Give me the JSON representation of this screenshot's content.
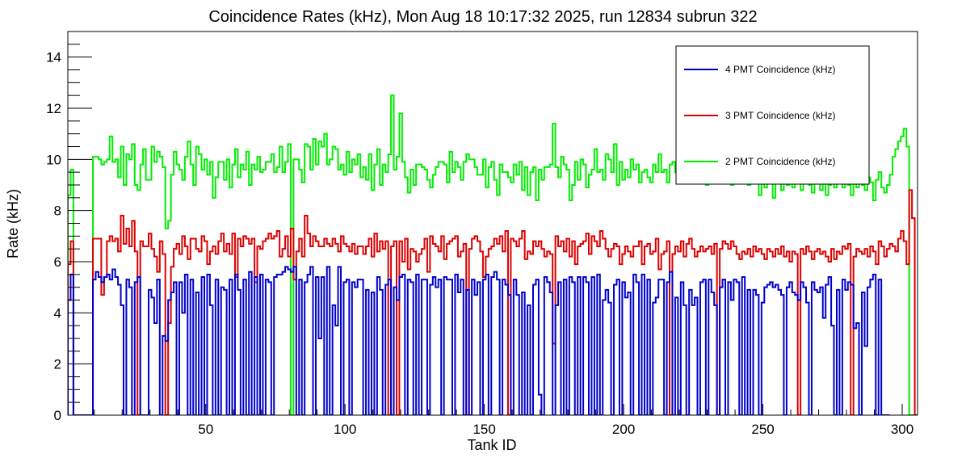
{
  "chart_data": {
    "type": "line",
    "title": "Coincidence Rates (kHz), Mon Aug 18 10:17:32 2025, run 12834 subrun 322",
    "xlabel": "Tank ID",
    "ylabel": "Rate (kHz)",
    "xlim": [
      0.5,
      305.5
    ],
    "ylim": [
      0,
      15
    ],
    "xticks": [
      50,
      100,
      150,
      200,
      250,
      300
    ],
    "yticks": [
      0,
      2,
      4,
      6,
      8,
      10,
      12,
      14
    ],
    "grid": false,
    "legend_position": "top-right",
    "x_start": 1,
    "series": [
      {
        "name": "4 PMT Coincidence (kHz)",
        "color": "#0000cc",
        "values": [
          4.5,
          5.5,
          0,
          0,
          0,
          0,
          0,
          0,
          0,
          5.3,
          5.6,
          5.4,
          5.2,
          5.4,
          5.5,
          5.3,
          5.7,
          5.4,
          5.1,
          4.3,
          0,
          5.3,
          5.0,
          0,
          5.2,
          5.4,
          0,
          0,
          0,
          4.9,
          4.6,
          3.6,
          5.3,
          0,
          3.1,
          2.9,
          4.5,
          4.8,
          5.2,
          0,
          5.2,
          4.0,
          5.5,
          0,
          5.3,
          0,
          4.8,
          0,
          5.4,
          0,
          5.5,
          4.3,
          0,
          5.3,
          0,
          5.0,
          4.9,
          0,
          5.3,
          0,
          5.5,
          4.9,
          0,
          5.3,
          0,
          5.6,
          0,
          5.4,
          0,
          5.5,
          0,
          5.3,
          5.2,
          0,
          5.4,
          5.5,
          5.5,
          5.6,
          5.8,
          5.7,
          5.6,
          5.8,
          0,
          5.3,
          0,
          5.2,
          5.5,
          5.8,
          0,
          5.4,
          3.0,
          5.4,
          0,
          5.8,
          0,
          4.3,
          3.5,
          5.8,
          0,
          5.2,
          5.3,
          0,
          5.2,
          5.0,
          5.3,
          5.3,
          0,
          4.9,
          0,
          4.8,
          0,
          5.4,
          4.9,
          0,
          5.1,
          5.3,
          0,
          5.0,
          4.5,
          5.4,
          5.5,
          0,
          5.3,
          5.2,
          0,
          5.5,
          0,
          5.3,
          5.3,
          0,
          5.1,
          5.4,
          5.0,
          5.3,
          0,
          5.4,
          5.3,
          5.3,
          0,
          5.5,
          4.8,
          5.3,
          0,
          4.9,
          0,
          5.3,
          4.7,
          5.2,
          0,
          5.3,
          5.5,
          0,
          5.4,
          5.6,
          5.3,
          0,
          5.3,
          5.1,
          4.7,
          0,
          5.3,
          4.7,
          0,
          4.8,
          0,
          4.3,
          0,
          5.1,
          5.3,
          0.8,
          0,
          5.4,
          5.2,
          4.8,
          0,
          4.3,
          5.2,
          0,
          5.3,
          0,
          5.4,
          5.2,
          0,
          5.4,
          0,
          5.4,
          5.2,
          0,
          5.4,
          0,
          5.5,
          0,
          4.5,
          4.9,
          4.4,
          0,
          5.1,
          5.3,
          0,
          5.2,
          4.6,
          4.8,
          0,
          5.5,
          5.2,
          0,
          5.5,
          0,
          5.3,
          0,
          4.4,
          4.6,
          5.3,
          5.3,
          0,
          5.2,
          5.6,
          0,
          4.6,
          0,
          5.2,
          4.3,
          0,
          4.9,
          4.3,
          4.6,
          0,
          5.2,
          5.3,
          0,
          5.3,
          4.8,
          4.3,
          0,
          5.0,
          5.3,
          0,
          5.2,
          4.5,
          5.3,
          5.2,
          0,
          5.4,
          0,
          4.9,
          0,
          4.9,
          4.7,
          0,
          4.4,
          5.0,
          5.1,
          5.2,
          5.0,
          5.1,
          4.9,
          4.7,
          0,
          5.0,
          5.2,
          4.8,
          4.7,
          4.5,
          5.2,
          5.0,
          4.4,
          0,
          5.2,
          4.9,
          4.8,
          5.0,
          3.8,
          5.1,
          5.4,
          3.5,
          0,
          4.9,
          0,
          5.3,
          4.9,
          5.2,
          5.1,
          3.4,
          3.6,
          0,
          4.8,
          2.7,
          5.0,
          5.3,
          5.5,
          0,
          5.3,
          0,
          0,
          0
        ],
        "offset_x": 0.5
      },
      {
        "name": "3 PMT Coincidence (kHz)",
        "color": "#dd0000",
        "values": [
          5.9,
          6.8,
          0,
          0,
          0,
          0,
          0,
          0,
          0,
          6.9,
          6.9,
          6.9,
          4.7,
          5.4,
          6.8,
          7.0,
          6.8,
          6.9,
          6.4,
          7.8,
          6.7,
          7.3,
          6.6,
          7.6,
          6.4,
          0,
          6.8,
          6.6,
          6.6,
          7.1,
          6.5,
          6.2,
          5.6,
          6.8,
          6.3,
          0,
          3.6,
          5.8,
          6.5,
          6.7,
          6.3,
          7.0,
          6.6,
          6.1,
          6.9,
          6.9,
          6.5,
          6.4,
          7.0,
          6.8,
          5.9,
          6.4,
          6.6,
          6.3,
          6.8,
          7.1,
          6.4,
          6.7,
          6.3,
          7.1,
          5.4,
          6.9,
          6.6,
          7.0,
          6.9,
          6.7,
          6.9,
          5.2,
          6.6,
          6.5,
          6.8,
          6.9,
          7.1,
          6.9,
          7.0,
          7.2,
          6.2,
          6.5,
          7.0,
          6.2,
          7.3,
          5.3,
          6.4,
          6.9,
          6.2,
          7.8,
          7.1,
          6.6,
          7.0,
          6.8,
          6.6,
          6.6,
          6.9,
          6.7,
          6.6,
          6.9,
          6.7,
          6.4,
          7.0,
          6.7,
          6.6,
          6.4,
          6.7,
          6.3,
          6.6,
          6.6,
          6.3,
          6.6,
          6.9,
          6.2,
          7.1,
          6.4,
          6.8,
          6.5,
          6.8,
          0,
          6.6,
          6.8,
          0,
          6.8,
          6.0,
          6.9,
          5.7,
          6.5,
          6.4,
          6.0,
          6.3,
          6.5,
          6.9,
          5.6,
          7.0,
          6.7,
          6.6,
          6.4,
          7.0,
          6.1,
          6.7,
          6.8,
          6.9,
          7.0,
          6.2,
          6.4,
          6.7,
          0,
          6.5,
          6.9,
          7.0,
          6.8,
          6.4,
          5.4,
          6.2,
          6.5,
          6.6,
          6.9,
          6.7,
          7.0,
          6.4,
          7.2,
          0,
          6.9,
          6.8,
          6.6,
          6.9,
          7.2,
          6.1,
          6.4,
          6.3,
          6.8,
          6.6,
          6.8,
          6.5,
          6.2,
          6.4,
          6.3,
          2.8,
          7.0,
          6.6,
          6.8,
          6.4,
          6.9,
          6.2,
          6.8,
          5.9,
          6.6,
          6.7,
          6.8,
          7.1,
          6.3,
          7.0,
          6.8,
          6.6,
          7.2,
          6.9,
          6.5,
          6.2,
          6.5,
          6.7,
          6.6,
          5.9,
          6.3,
          6.6,
          6.4,
          6.2,
          6.6,
          6.6,
          6.8,
          5.9,
          6.6,
          6.7,
          6.3,
          6.4,
          6.9,
          5.7,
          6.3,
          6.4,
          6.8,
          0,
          6.3,
          6.6,
          6.4,
          6.8,
          6.2,
          6.7,
          6.9,
          6.5,
          6.2,
          6.4,
          6.6,
          6.4,
          6.5,
          6.6,
          6.3,
          6.7,
          0,
          6.5,
          6.8,
          6.7,
          6.5,
          6.8,
          6.6,
          6.3,
          6.1,
          6.4,
          6.3,
          6.5,
          6.2,
          6.6,
          6.4,
          6.5,
          6.3,
          6.1,
          6.5,
          6.4,
          6.2,
          6.5,
          6.3,
          6.6,
          6.2,
          6.4,
          6.0,
          6.4,
          6.3,
          0,
          6.5,
          6.3,
          6.6,
          6.4,
          6.1,
          6.4,
          6.5,
          6.3,
          6.4,
          6.2,
          6.0,
          6.5,
          6.1,
          6.4,
          6.3,
          6.6,
          6.5,
          6.7,
          0,
          6.2,
          6.5,
          6.4,
          6.3,
          6.5,
          6.2,
          6.6,
          6.4,
          5.9,
          6.8,
          6.6,
          6.2,
          6.5,
          6.7,
          6.6,
          6.4,
          6.9,
          7.2,
          6.8,
          5.9,
          8.8,
          7.7,
          0,
          0,
          0
        ],
        "offset_x": 0.5
      },
      {
        "name": "2 PMT Coincidence (kHz)",
        "color": "#00ee00",
        "values": [
          8.6,
          9.6,
          0,
          0,
          0,
          0,
          0,
          0,
          0,
          10.1,
          10.1,
          10.0,
          9.8,
          9.9,
          10.0,
          10.9,
          9.9,
          10.0,
          9.3,
          10.5,
          9.0,
          10.2,
          10.0,
          10.6,
          9.0,
          8.8,
          9.8,
          10.4,
          9.2,
          9.2,
          10.5,
          9.9,
          10.3,
          10.1,
          9.7,
          7.3,
          7.6,
          9.4,
          10.3,
          9.8,
          9.6,
          9.2,
          10.1,
          10.7,
          9.8,
          9.0,
          10.5,
          10.2,
          9.6,
          10.0,
          9.4,
          9.9,
          8.5,
          9.3,
          9.9,
          9.9,
          9.2,
          10.0,
          8.9,
          9.8,
          10.4,
          9.3,
          9.8,
          9.6,
          10.3,
          9.0,
          9.8,
          9.6,
          10.1,
          9.5,
          9.6,
          9.9,
          9.9,
          10.2,
          9.5,
          9.7,
          10.5,
          9.5,
          9.9,
          10.6,
          0,
          10.0,
          10.0,
          9.6,
          9.1,
          10.6,
          10.5,
          9.6,
          10.8,
          9.8,
          10.7,
          10.5,
          11.0,
          9.8,
          10.0,
          10.5,
          10.4,
          9.6,
          9.8,
          9.4,
          10.3,
          9.5,
          10.0,
          9.8,
          10.2,
          9.3,
          9.7,
          9.2,
          10.2,
          8.8,
          9.8,
          10.4,
          9.0,
          9.8,
          9.5,
          10.2,
          12.5,
          9.6,
          10.1,
          11.8,
          9.9,
          9.3,
          8.7,
          9.6,
          9.0,
          9.8,
          9.8,
          9.7,
          9.6,
          9.2,
          8.9,
          9.4,
          9.7,
          9.9,
          9.9,
          9.8,
          9.1,
          10.3,
          9.5,
          9.9,
          9.7,
          9.2,
          9.9,
          10.2,
          10.0,
          10.0,
          9.7,
          9.4,
          9.4,
          10.0,
          8.9,
          9.7,
          9.9,
          9.2,
          8.6,
          9.8,
          9.5,
          9.5,
          9.3,
          9.1,
          9.8,
          9.4,
          9.9,
          8.8,
          9.7,
          8.6,
          9.5,
          9.7,
          8.4,
          9.6,
          9.2,
          9.7,
          9.7,
          9.8,
          11.4,
          9.7,
          9.3,
          10.1,
          9.8,
          9.6,
          8.4,
          9.0,
          9.9,
          9.2,
          10.0,
          9.8,
          8.9,
          9.4,
          9.6,
          10.4,
          9.5,
          9.6,
          9.2,
          10.2,
          10.0,
          9.5,
          10.6,
          9.0,
          9.9,
          9.2,
          9.6,
          9.3,
          10.0,
          9.6,
          9.8,
          9.1,
          9.5,
          9.6,
          9.3,
          9.1,
          9.8,
          9.5,
          10.2,
          9.5,
          9.6,
          9.1,
          9.8,
          9.9,
          9.5,
          9.7,
          9.8,
          9.6,
          9.3,
          10.2,
          9.1,
          9.9,
          9.8,
          9.5,
          9.9,
          9.0,
          9.5,
          9.8,
          9.2,
          9.7,
          9.4,
          9.6,
          9.3,
          9.8,
          9.0,
          9.4,
          9.6,
          9.1,
          9.5,
          9.2,
          9.0,
          9.4,
          9.7,
          9.3,
          8.6,
          9.6,
          8.9,
          9.4,
          9.1,
          8.5,
          9.3,
          9.6,
          8.8,
          9.5,
          9.0,
          9.3,
          8.9,
          9.6,
          9.1,
          8.8,
          9.3,
          9.5,
          9.0,
          8.7,
          9.4,
          9.2,
          8.8,
          9.3,
          8.6,
          9.0,
          9.2,
          8.9,
          9.4,
          9.1,
          8.9,
          9.3,
          9.0,
          8.6,
          9.2,
          8.9,
          9.4,
          9.0,
          8.8,
          9.3,
          9.1,
          8.4,
          9.2,
          9.5,
          8.9,
          8.7,
          9.0,
          9.4,
          10.1,
          10.4,
          10.7,
          10.9,
          11.2,
          10.5,
          0,
          0,
          0
        ],
        "offset_x": 0.5
      }
    ]
  }
}
